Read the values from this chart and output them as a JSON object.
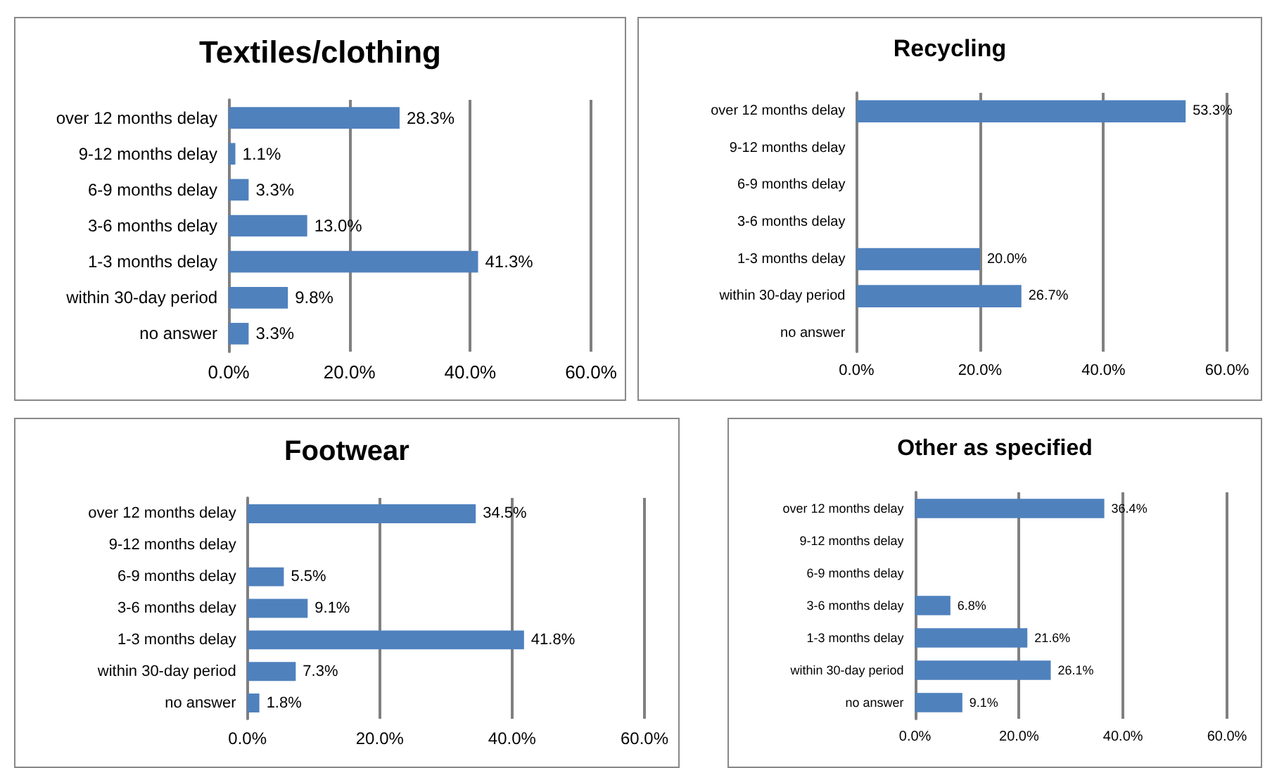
{
  "chart_data": [
    {
      "type": "bar",
      "orientation": "horizontal",
      "title": "Textiles/clothing",
      "categories": [
        "over 12 months delay",
        "9-12 months delay",
        "6-9 months delay",
        "3-6 months delay",
        "1-3 months delay",
        "within 30-day period",
        "no answer"
      ],
      "values": [
        28.3,
        1.1,
        3.3,
        13.0,
        41.3,
        9.8,
        3.3
      ],
      "value_labels": [
        "28.3%",
        "1.1%",
        "3.3%",
        "13.0%",
        "41.3%",
        "9.8%",
        "3.3%"
      ],
      "color": "#4f81bd",
      "xlim": [
        0,
        60
      ],
      "xticks": [
        {
          "value": 0,
          "label": "0.0%"
        },
        {
          "value": 20,
          "label": "20.0%"
        },
        {
          "value": 40,
          "label": "40.0%"
        },
        {
          "value": 60,
          "label": "60.0%"
        }
      ],
      "grid": "x"
    },
    {
      "type": "bar",
      "orientation": "horizontal",
      "title": "Recycling",
      "categories": [
        "over 12 months delay",
        "9-12 months delay",
        "6-9 months delay",
        "3-6 months delay",
        "1-3 months delay",
        "within 30-day period",
        "no answer"
      ],
      "values": [
        53.3,
        null,
        null,
        null,
        20.0,
        26.7,
        null
      ],
      "value_labels": [
        "53.3%",
        null,
        null,
        null,
        "20.0%",
        "26.7%",
        null
      ],
      "color": "#4f81bd",
      "xlim": [
        0,
        60
      ],
      "xticks": [
        {
          "value": 0,
          "label": "0.0%"
        },
        {
          "value": 20,
          "label": "20.0%"
        },
        {
          "value": 40,
          "label": "40.0%"
        },
        {
          "value": 60,
          "label": "60.0%"
        }
      ],
      "grid": "x"
    },
    {
      "type": "bar",
      "orientation": "horizontal",
      "title": "Footwear",
      "categories": [
        "over 12 months delay",
        "9-12 months delay",
        "6-9 months delay",
        "3-6 months delay",
        "1-3 months delay",
        "within 30-day period",
        "no answer"
      ],
      "values": [
        34.5,
        null,
        5.5,
        9.1,
        41.8,
        7.3,
        1.8
      ],
      "value_labels": [
        "34.5%",
        null,
        "5.5%",
        "9.1%",
        "41.8%",
        "7.3%",
        "1.8%"
      ],
      "color": "#4f81bd",
      "xlim": [
        0,
        60
      ],
      "xticks": [
        {
          "value": 0,
          "label": "0.0%"
        },
        {
          "value": 20,
          "label": "20.0%"
        },
        {
          "value": 40,
          "label": "40.0%"
        },
        {
          "value": 60,
          "label": "60.0%"
        }
      ],
      "grid": "x"
    },
    {
      "type": "bar",
      "orientation": "horizontal",
      "title": "Other as specified",
      "categories": [
        "over 12 months delay",
        "9-12 months delay",
        "6-9 months delay",
        "3-6 months delay",
        "1-3 months delay",
        "within 30-day period",
        "no answer"
      ],
      "values": [
        36.4,
        null,
        null,
        6.8,
        21.6,
        26.1,
        9.1
      ],
      "value_labels": [
        "36.4%",
        null,
        null,
        "6.8%",
        "21.6%",
        "26.1%",
        "9.1%"
      ],
      "color": "#4f81bd",
      "xlim": [
        0,
        60
      ],
      "xticks": [
        {
          "value": 0,
          "label": "0.0%"
        },
        {
          "value": 20,
          "label": "20.0%"
        },
        {
          "value": 40,
          "label": "40.0%"
        },
        {
          "value": 60,
          "label": "60.0%"
        }
      ],
      "grid": "x"
    }
  ]
}
